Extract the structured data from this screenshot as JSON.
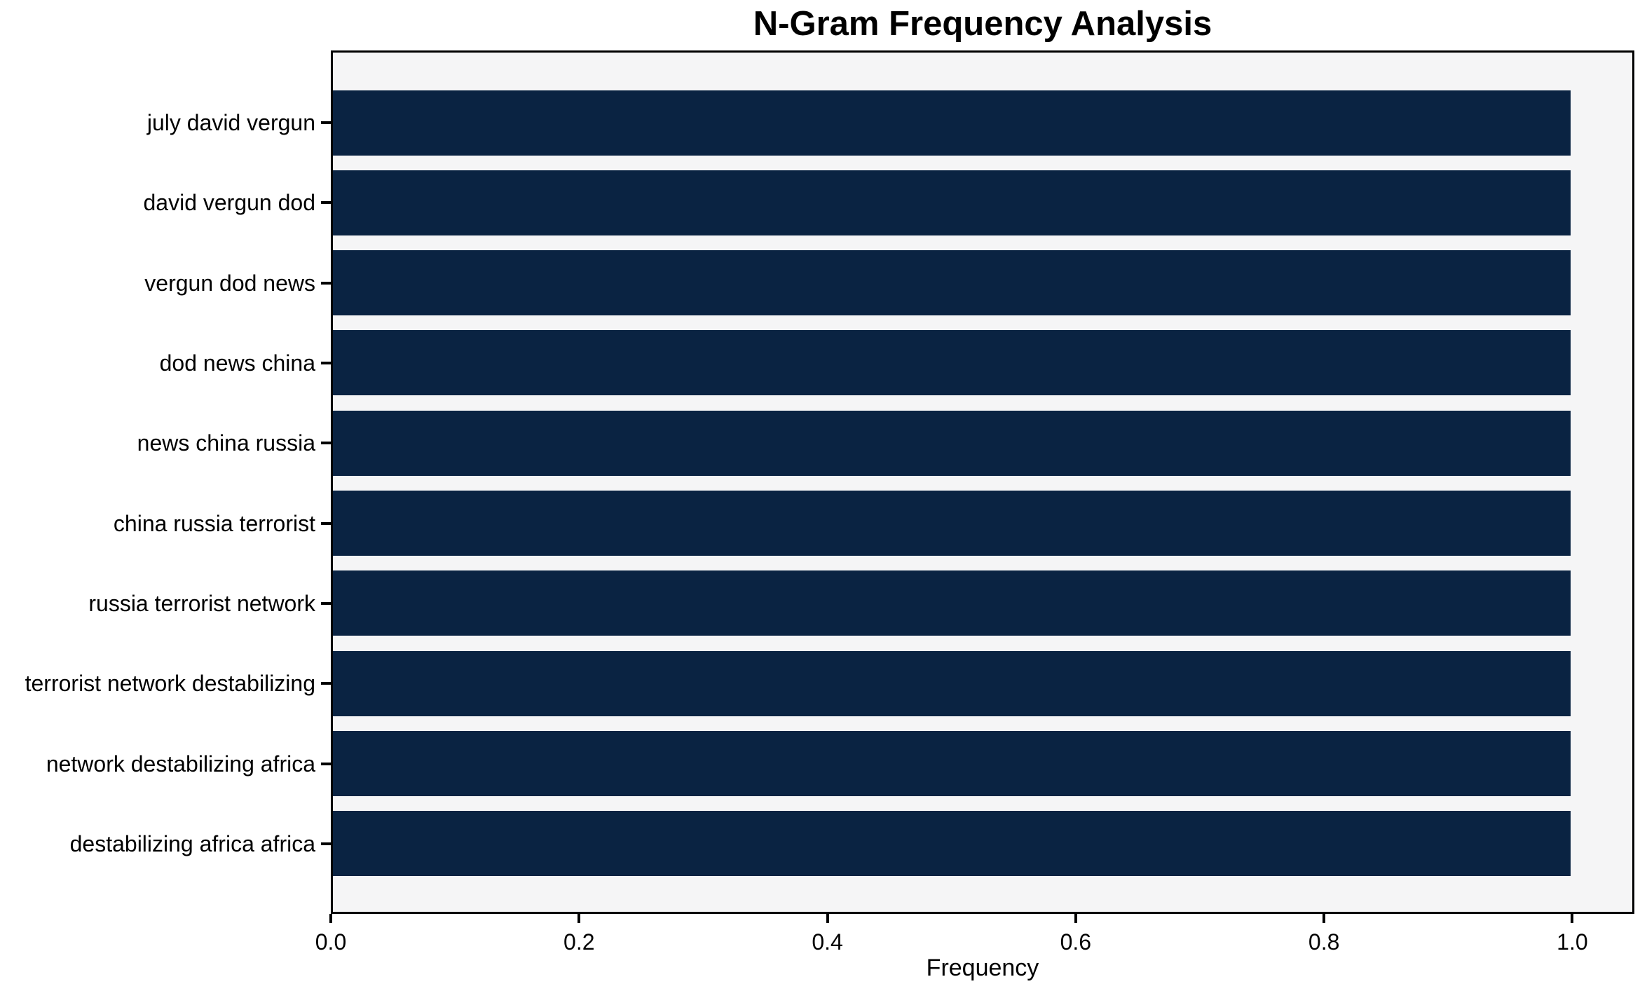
{
  "figure": {
    "background_color": "#ffffff",
    "plot_background_color": "#f5f5f6",
    "axis_color": "#000000",
    "text_color": "#000000"
  },
  "chart_data": {
    "type": "bar",
    "orientation": "horizontal",
    "title": "N-Gram Frequency Analysis",
    "xlabel": "Frequency",
    "ylabel": "",
    "categories": [
      "july david vergun",
      "david vergun dod",
      "vergun dod news",
      "dod news china",
      "news china russia",
      "china russia terrorist",
      "russia terrorist network",
      "terrorist network destabilizing",
      "network destabilizing africa",
      "destabilizing africa africa"
    ],
    "values": [
      1.0,
      1.0,
      1.0,
      1.0,
      1.0,
      1.0,
      1.0,
      1.0,
      1.0,
      1.0
    ],
    "xlim": [
      0,
      1.05
    ],
    "xtick_values": [
      0.0,
      0.2,
      0.4,
      0.6,
      0.8,
      1.0
    ],
    "xtick_labels": [
      "0.0",
      "0.2",
      "0.4",
      "0.6",
      "0.8",
      "1.0"
    ],
    "bar_color": "#0a2342",
    "grid": false,
    "legend_position": "none"
  }
}
